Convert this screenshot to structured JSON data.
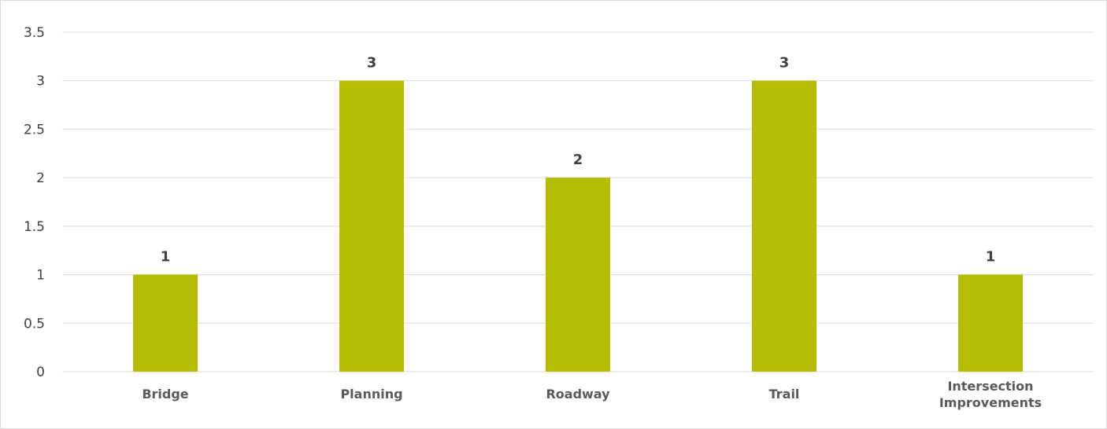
{
  "chart_data": {
    "type": "bar",
    "title": "",
    "xlabel": "",
    "ylabel": "",
    "categories": [
      "Bridge",
      "Planning",
      "Roadway",
      "Trail",
      "Intersection Improvements"
    ],
    "category_lines": [
      [
        "Bridge"
      ],
      [
        "Planning"
      ],
      [
        "Roadway"
      ],
      [
        "Trail"
      ],
      [
        "Intersection",
        "Improvements"
      ]
    ],
    "values": [
      1,
      3,
      2,
      3,
      1
    ],
    "data_labels": [
      "1",
      "3",
      "2",
      "3",
      "1"
    ],
    "ylim": [
      0,
      3.5
    ],
    "yticks": [
      0,
      0.5,
      1,
      1.5,
      2,
      2.5,
      3,
      3.5
    ],
    "ytick_labels": [
      "0",
      "0.5",
      "1",
      "1.5",
      "2",
      "2.5",
      "3",
      "3.5"
    ],
    "grid": true,
    "legend": "none",
    "bar_color": "#B5BD00",
    "grid_color": "#D9D9D9"
  }
}
